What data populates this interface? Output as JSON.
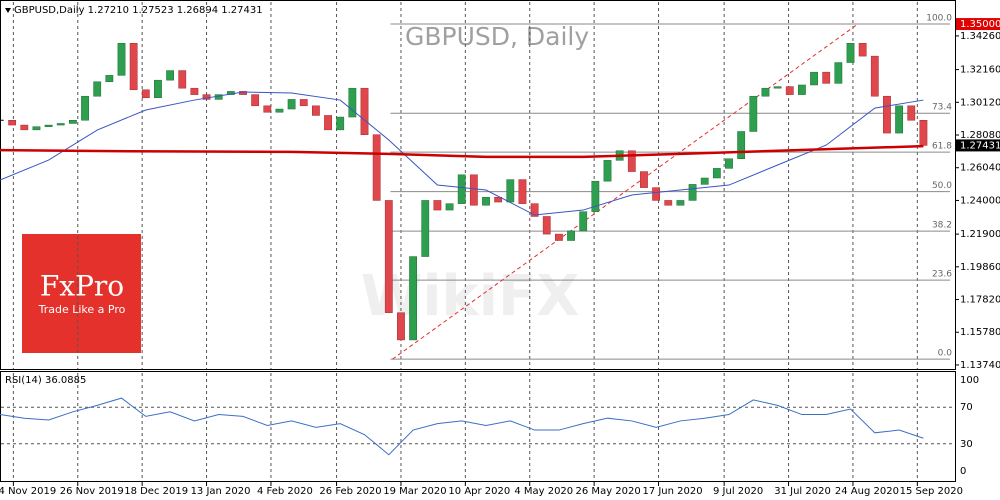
{
  "chart_data": {
    "type": "candlestick",
    "title": "GBPUSD, Daily",
    "header": "GBPUSD,Daily  1.27210 1.27523 1.26894 1.27431",
    "up_color": "#2e9e4f",
    "down_color": "#e0474c",
    "close": [
      1.29,
      1.287,
      1.284,
      1.286,
      1.287,
      1.288,
      1.29,
      1.305,
      1.314,
      1.318,
      1.338,
      1.309,
      1.304,
      1.315,
      1.321,
      1.31,
      1.306,
      1.303,
      1.306,
      1.308,
      1.306,
      1.299,
      1.295,
      1.297,
      1.303,
      1.299,
      1.293,
      1.284,
      1.292,
      1.31,
      1.281,
      1.24,
      1.17,
      1.153,
      1.205,
      1.24,
      1.234,
      1.238,
      1.256,
      1.237,
      1.242,
      1.239,
      1.253,
      1.238,
      1.23,
      1.219,
      1.215,
      1.221,
      1.233,
      1.252,
      1.265,
      1.271,
      1.258,
      1.248,
      1.24,
      1.237,
      1.24,
      1.25,
      1.254,
      1.26,
      1.266,
      1.283,
      1.305,
      1.31,
      1.311,
      1.306,
      1.312,
      1.32,
      1.313,
      1.326,
      1.338,
      1.33,
      1.305,
      1.282,
      1.299,
      1.29,
      1.2743
    ],
    "overlays": [
      {
        "color": "#3a55c4",
        "x": [
          0,
          4,
          8,
          12,
          16,
          20,
          24,
          28,
          32,
          36,
          40,
          44,
          48,
          52,
          56,
          60,
          64,
          68,
          72,
          76
        ],
        "values": [
          1.2527,
          1.2652,
          1.2839,
          1.2964,
          1.3026,
          1.3076,
          1.307,
          1.3026,
          1.2777,
          1.2496,
          1.2465,
          1.2309,
          1.234,
          1.2434,
          1.2465,
          1.2496,
          1.2621,
          1.2745,
          1.2976,
          1.3026
        ]
      },
      {
        "color": "#cc0000",
        "x": [
          0,
          8,
          16,
          24,
          32,
          40,
          48,
          56,
          64,
          72,
          76
        ],
        "values": [
          1.2714,
          1.2708,
          1.2705,
          1.2703,
          1.269,
          1.2672,
          1.2672,
          1.269,
          1.271,
          1.2729,
          1.2739
        ]
      }
    ],
    "xlim": [
      0,
      78.6
    ],
    "xticks": [
      {
        "value": 1.1,
        "label": "4 Nov 2019"
      },
      {
        "value": 6.4,
        "label": "26 Nov 2019"
      },
      {
        "value": 11.7,
        "label": "18 Dec 2019"
      },
      {
        "value": 17,
        "label": "13 Jan 2020"
      },
      {
        "value": 22.3,
        "label": "4 Feb 2020"
      },
      {
        "value": 27.7,
        "label": "26 Feb 2020"
      },
      {
        "value": 33,
        "label": "19 Mar 2020"
      },
      {
        "value": 38.3,
        "label": "10 Apr 2020"
      },
      {
        "value": 43.6,
        "label": "4 May 2020"
      },
      {
        "value": 48.9,
        "label": "26 May 2020"
      },
      {
        "value": 54.2,
        "label": "17 Jun 2020"
      },
      {
        "value": 59.6,
        "label": "9 Jul 2020"
      },
      {
        "value": 64.9,
        "label": "31 Jul 2020"
      },
      {
        "value": 70.2,
        "label": "24 Aug 2020"
      },
      {
        "value": 75.5,
        "label": "15 Sep 2020"
      }
    ],
    "grid": true,
    "ylim": [
      1.1355,
      1.365
    ],
    "yticks": [
      {
        "value": 1.3426,
        "label": "1.34260"
      },
      {
        "value": 1.3216,
        "label": "1.32160"
      },
      {
        "value": 1.3012,
        "label": "1.30120"
      },
      {
        "value": 1.2808,
        "label": "1.28080"
      },
      {
        "value": 1.2604,
        "label": "1.26040"
      },
      {
        "value": 1.24,
        "label": "1.24000"
      },
      {
        "value": 1.219,
        "label": "1.21900"
      },
      {
        "value": 1.1986,
        "label": "1.19860"
      },
      {
        "value": 1.1782,
        "label": "1.17820"
      },
      {
        "value": 1.1578,
        "label": "1.15780"
      },
      {
        "value": 1.1374,
        "label": "1.13740"
      }
    ],
    "current_price": 1.27431,
    "top_price": {
      "value": 1.35,
      "label": "1.35000"
    },
    "fib": {
      "low": 1.141,
      "high": 1.35,
      "low_x": 32.3,
      "high_x": 70.6,
      "levels": [
        {
          "value": 100,
          "label": "100.0"
        },
        73.4,
        61.8,
        {
          "value": 50,
          "label": "50.0"
        },
        38.2,
        23.6,
        {
          "value": 0,
          "label": "0.0"
        }
      ]
    },
    "rsi": {
      "label": "RSI(14) 36.0885",
      "color": "#3a6fc4",
      "x": [
        0,
        2,
        4,
        6,
        8,
        10,
        12,
        14,
        16,
        18,
        20,
        22,
        24,
        26,
        28,
        30,
        32,
        34,
        36,
        38,
        40,
        42,
        44,
        46,
        48,
        50,
        52,
        54,
        56,
        58,
        60,
        62,
        64,
        66,
        68,
        70,
        72,
        74,
        76
      ],
      "values": [
        62,
        58,
        56,
        65,
        72,
        80,
        60,
        65,
        55,
        62,
        60,
        50,
        55,
        48,
        52,
        40,
        18,
        45,
        52,
        55,
        50,
        55,
        45,
        45,
        52,
        58,
        55,
        48,
        55,
        58,
        62,
        78,
        72,
        62,
        62,
        68,
        42,
        45,
        36
      ],
      "ylim": [
        -10.8,
        108.6
      ],
      "yticks": [
        100,
        70,
        30,
        0
      ]
    },
    "logo": {
      "name": "FxPro",
      "tagline": "Trade Like a Pro"
    },
    "watermark": "WikiFX"
  }
}
